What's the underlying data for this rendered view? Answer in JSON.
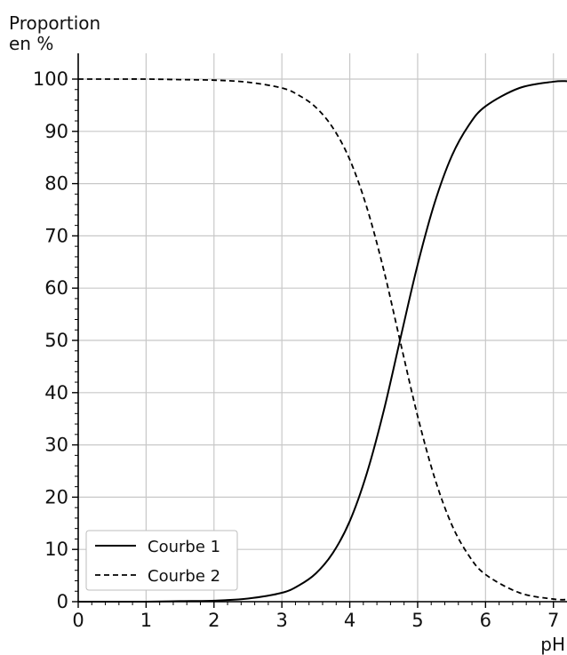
{
  "chart_data": {
    "type": "line",
    "ylabel_line1": "Proportion",
    "ylabel_line2": "en %",
    "xlabel": "pH",
    "xlim": [
      0,
      7.2
    ],
    "ylim": [
      0,
      100
    ],
    "x_ticks": [
      "0",
      "1",
      "2",
      "3",
      "4",
      "5",
      "6",
      "7"
    ],
    "y_ticks": [
      "0",
      "10",
      "20",
      "30",
      "40",
      "50",
      "60",
      "70",
      "80",
      "90",
      "100"
    ],
    "grid": true,
    "legend_position": "bottom-left",
    "x": [
      0,
      0.5,
      1,
      1.5,
      2,
      2.5,
      3,
      3.25,
      3.5,
      3.75,
      4,
      4.25,
      4.5,
      4.75,
      5,
      5.25,
      5.5,
      5.75,
      6,
      6.5,
      7,
      7.2
    ],
    "series": [
      {
        "name": "Courbe 1",
        "style": "solid",
        "values": [
          0.0,
          0.0,
          0.0,
          0.1,
          0.2,
          0.6,
          1.7,
          3.1,
          5.4,
          9.3,
          15.4,
          24.5,
          36.5,
          50.6,
          64.5,
          76.3,
          85.2,
          91.1,
          94.8,
          98.3,
          99.5,
          99.6
        ]
      },
      {
        "name": "Courbe 2",
        "style": "dashed",
        "values": [
          100.0,
          100.0,
          100.0,
          99.9,
          99.8,
          99.4,
          98.3,
          96.9,
          94.6,
          90.7,
          84.6,
          75.5,
          63.5,
          49.4,
          35.5,
          23.7,
          14.8,
          8.9,
          5.2,
          1.7,
          0.5,
          0.4
        ]
      }
    ],
    "colors": {
      "line": "#000000",
      "grid": "#c8c8c8",
      "axis": "#000000"
    }
  }
}
